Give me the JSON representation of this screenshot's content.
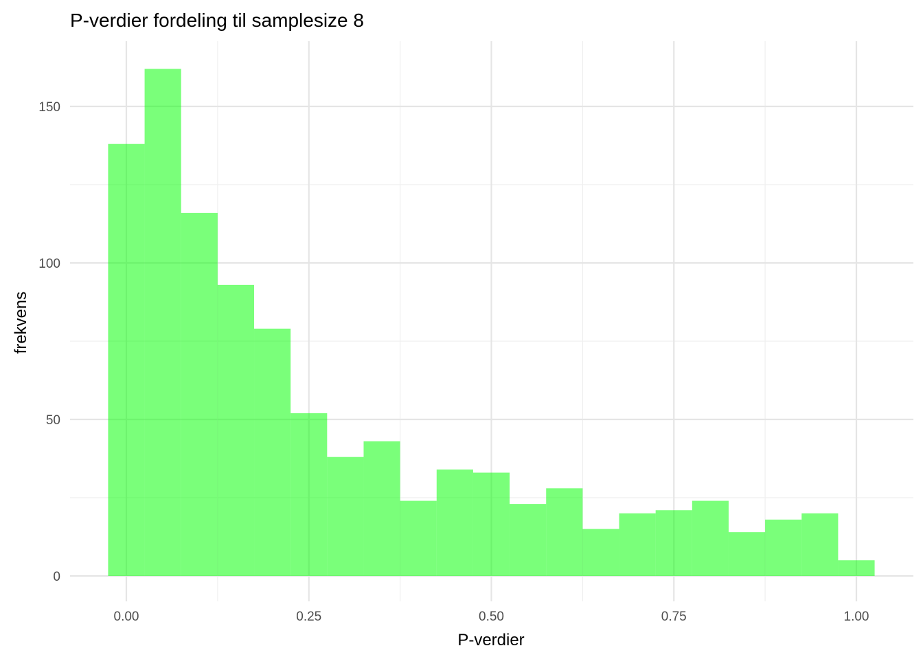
{
  "chart_data": {
    "type": "bar",
    "title": "P-verdier fordeling til samplesize 8",
    "xlabel": "P-verdier",
    "ylabel": "frekvens",
    "bin_width": 0.05,
    "bin_centers": [
      0.0,
      0.05,
      0.1,
      0.15,
      0.2,
      0.25,
      0.3,
      0.35,
      0.4,
      0.45,
      0.5,
      0.55,
      0.6,
      0.65,
      0.7,
      0.75,
      0.8,
      0.85,
      0.9,
      0.95,
      1.0
    ],
    "values": [
      138,
      162,
      116,
      93,
      79,
      52,
      38,
      43,
      24,
      34,
      33,
      23,
      28,
      15,
      20,
      21,
      24,
      14,
      18,
      20,
      5
    ],
    "xlim": [
      -0.025,
      1.025
    ],
    "ylim": [
      0,
      162
    ],
    "x_ticks": [
      0.0,
      0.25,
      0.5,
      0.75,
      1.0
    ],
    "x_tick_labels": [
      "0.00",
      "0.25",
      "0.50",
      "0.75",
      "1.00"
    ],
    "y_ticks": [
      0,
      50,
      100,
      150
    ],
    "y_tick_labels": [
      "0",
      "50",
      "100",
      "150"
    ],
    "grid": true,
    "bar_color": "#00FF00",
    "bar_opacity": 0.52
  }
}
